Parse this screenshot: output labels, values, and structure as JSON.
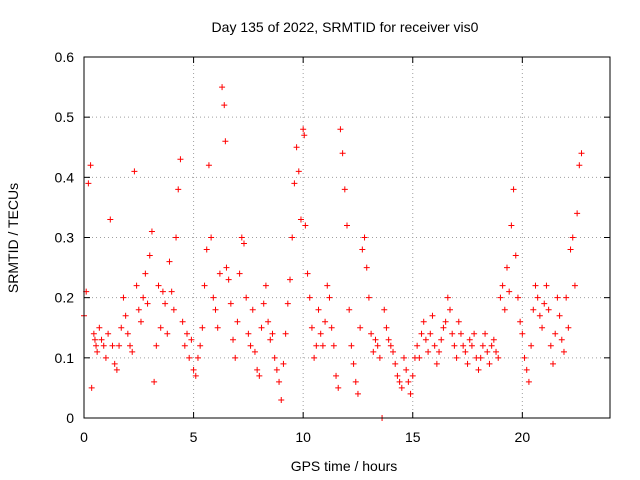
{
  "chart_data": {
    "type": "scatter",
    "title": "Day 135 of 2022, SRMTID for receiver vis0",
    "xlabel": "GPS time / hours",
    "ylabel": "SRMTID / TECUs",
    "xlim": [
      0,
      24
    ],
    "ylim": [
      0,
      0.6
    ],
    "xticks": [
      0,
      5,
      10,
      15,
      20
    ],
    "xtick_labels": [
      "0",
      "5",
      "10",
      "15",
      "20"
    ],
    "yticks": [
      0,
      0.1,
      0.2,
      0.3,
      0.4,
      0.5,
      0.6
    ],
    "ytick_labels": [
      "0",
      "0.1",
      "0.2",
      "0.3",
      "0.4",
      "0.5",
      "0.6"
    ],
    "grid": true,
    "marker": "plus",
    "color": "#ff0000",
    "series": [
      {
        "name": "vis0",
        "x": [
          0.0,
          0.1,
          0.2,
          0.3,
          0.35,
          0.45,
          0.5,
          0.55,
          0.6,
          0.7,
          0.8,
          0.9,
          1.0,
          1.1,
          1.2,
          1.3,
          1.4,
          1.5,
          1.6,
          1.7,
          1.8,
          1.9,
          2.0,
          2.1,
          2.2,
          2.3,
          2.4,
          2.5,
          2.6,
          2.7,
          2.8,
          2.9,
          3.0,
          3.1,
          3.2,
          3.3,
          3.4,
          3.5,
          3.6,
          3.7,
          3.8,
          3.9,
          4.0,
          4.1,
          4.2,
          4.3,
          4.4,
          4.5,
          4.6,
          4.7,
          4.8,
          4.9,
          5.0,
          5.1,
          5.2,
          5.3,
          5.4,
          5.5,
          5.6,
          5.7,
          5.8,
          5.9,
          6.0,
          6.1,
          6.2,
          6.3,
          6.4,
          6.45,
          6.5,
          6.6,
          6.7,
          6.8,
          6.9,
          7.0,
          7.1,
          7.2,
          7.3,
          7.4,
          7.5,
          7.6,
          7.7,
          7.8,
          7.9,
          8.0,
          8.1,
          8.2,
          8.3,
          8.4,
          8.5,
          8.6,
          8.7,
          8.8,
          8.9,
          9.0,
          9.1,
          9.2,
          9.3,
          9.4,
          9.5,
          9.6,
          9.7,
          9.8,
          9.9,
          10.0,
          10.05,
          10.1,
          10.2,
          10.3,
          10.4,
          10.5,
          10.6,
          10.7,
          10.8,
          10.9,
          11.0,
          11.1,
          11.2,
          11.3,
          11.4,
          11.5,
          11.6,
          11.7,
          11.8,
          11.9,
          12.0,
          12.1,
          12.2,
          12.3,
          12.4,
          12.5,
          12.6,
          12.7,
          12.8,
          12.9,
          13.0,
          13.1,
          13.2,
          13.3,
          13.4,
          13.5,
          13.6,
          13.7,
          13.8,
          13.9,
          14.0,
          14.1,
          14.2,
          14.3,
          14.4,
          14.5,
          14.6,
          14.7,
          14.8,
          14.9,
          15.0,
          15.1,
          15.2,
          15.3,
          15.4,
          15.5,
          15.6,
          15.7,
          15.8,
          15.9,
          16.0,
          16.1,
          16.2,
          16.3,
          16.4,
          16.5,
          16.6,
          16.7,
          16.8,
          16.9,
          17.0,
          17.1,
          17.2,
          17.3,
          17.4,
          17.5,
          17.6,
          17.7,
          17.8,
          17.9,
          18.0,
          18.1,
          18.2,
          18.3,
          18.4,
          18.5,
          18.6,
          18.7,
          18.8,
          18.9,
          19.0,
          19.1,
          19.2,
          19.3,
          19.4,
          19.5,
          19.6,
          19.7,
          19.8,
          19.9,
          20.0,
          20.1,
          20.2,
          20.3,
          20.4,
          20.5,
          20.6,
          20.7,
          20.8,
          20.9,
          21.0,
          21.1,
          21.2,
          21.3,
          21.4,
          21.5,
          21.6,
          21.7,
          21.8,
          21.9,
          22.0,
          22.1,
          22.2,
          22.3,
          22.4,
          22.5,
          22.6,
          22.7
        ],
        "y": [
          0.17,
          0.21,
          0.39,
          0.42,
          0.05,
          0.14,
          0.13,
          0.12,
          0.11,
          0.15,
          0.13,
          0.12,
          0.1,
          0.14,
          0.33,
          0.12,
          0.09,
          0.08,
          0.12,
          0.15,
          0.2,
          0.17,
          0.14,
          0.12,
          0.11,
          0.41,
          0.22,
          0.18,
          0.16,
          0.2,
          0.24,
          0.19,
          0.27,
          0.31,
          0.06,
          0.12,
          0.22,
          0.15,
          0.21,
          0.19,
          0.14,
          0.26,
          0.21,
          0.18,
          0.3,
          0.38,
          0.43,
          0.16,
          0.12,
          0.14,
          0.1,
          0.13,
          0.08,
          0.07,
          0.1,
          0.12,
          0.15,
          0.22,
          0.28,
          0.42,
          0.3,
          0.2,
          0.18,
          0.15,
          0.24,
          0.55,
          0.52,
          0.46,
          0.25,
          0.23,
          0.19,
          0.13,
          0.1,
          0.16,
          0.24,
          0.3,
          0.29,
          0.2,
          0.14,
          0.12,
          0.18,
          0.11,
          0.08,
          0.07,
          0.15,
          0.19,
          0.22,
          0.16,
          0.13,
          0.14,
          0.1,
          0.08,
          0.06,
          0.03,
          0.09,
          0.14,
          0.19,
          0.23,
          0.3,
          0.39,
          0.45,
          0.41,
          0.33,
          0.48,
          0.47,
          0.32,
          0.24,
          0.2,
          0.15,
          0.1,
          0.12,
          0.18,
          0.14,
          0.12,
          0.16,
          0.22,
          0.2,
          0.15,
          0.12,
          0.07,
          0.05,
          0.48,
          0.44,
          0.38,
          0.32,
          0.18,
          0.12,
          0.09,
          0.06,
          0.04,
          0.15,
          0.28,
          0.3,
          0.25,
          0.2,
          0.14,
          0.11,
          0.13,
          0.12,
          0.1,
          0.0,
          0.18,
          0.15,
          0.13,
          0.12,
          0.11,
          0.09,
          0.07,
          0.06,
          0.05,
          0.1,
          0.08,
          0.06,
          0.04,
          0.07,
          0.1,
          0.12,
          0.1,
          0.14,
          0.16,
          0.13,
          0.11,
          0.14,
          0.17,
          0.12,
          0.09,
          0.11,
          0.13,
          0.15,
          0.16,
          0.2,
          0.18,
          0.14,
          0.12,
          0.1,
          0.16,
          0.14,
          0.12,
          0.11,
          0.09,
          0.13,
          0.12,
          0.14,
          0.1,
          0.08,
          0.1,
          0.12,
          0.14,
          0.11,
          0.09,
          0.12,
          0.13,
          0.11,
          0.1,
          0.2,
          0.22,
          0.18,
          0.25,
          0.21,
          0.32,
          0.38,
          0.27,
          0.2,
          0.16,
          0.14,
          0.1,
          0.08,
          0.06,
          0.12,
          0.18,
          0.22,
          0.2,
          0.17,
          0.15,
          0.19,
          0.22,
          0.18,
          0.12,
          0.09,
          0.14,
          0.2,
          0.17,
          0.13,
          0.11,
          0.2,
          0.15,
          0.28,
          0.3,
          0.22,
          0.34,
          0.42,
          0.44
        ]
      }
    ]
  }
}
